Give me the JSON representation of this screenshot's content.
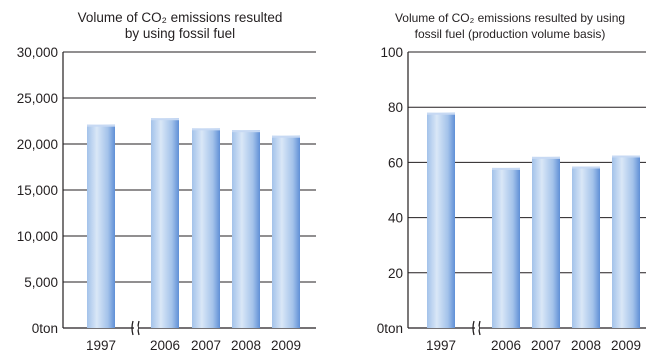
{
  "colors": {
    "bar_light": "#d9e7f7",
    "bar_mid": "#a3c2ea",
    "bar_dark": "#5f8fd6",
    "bar_top": "#c7d9f3",
    "axis": "#231f20",
    "gridline": "#231f20"
  },
  "chart_data": [
    {
      "type": "bar",
      "title_line1": "Volume of CO₂ emissions resulted",
      "title_line2": "by using fossil fuel",
      "categories": [
        "1997",
        "2006",
        "2007",
        "2008",
        "2009"
      ],
      "values": [
        22100,
        22800,
        21700,
        21500,
        20900
      ],
      "ylim": [
        0,
        30000
      ],
      "yticks": [
        0,
        5000,
        10000,
        15000,
        20000,
        25000,
        30000
      ],
      "ytick_labels": [
        "0ton",
        "5,000",
        "10,000",
        "15,000",
        "20,000",
        "25,000",
        "30,000"
      ],
      "axis_break_after": "1997",
      "grid": true
    },
    {
      "type": "bar",
      "title_line1": "Volume of CO₂ emissions resulted by using",
      "title_line2": "fossil fuel (production volume basis)",
      "categories": [
        "1997",
        "2006",
        "2007",
        "2008",
        "2009"
      ],
      "values": [
        78,
        58,
        62,
        58.5,
        62.5
      ],
      "ylim": [
        0,
        100
      ],
      "yticks": [
        0,
        20,
        40,
        60,
        80,
        100
      ],
      "ytick_labels": [
        "0ton",
        "20",
        "40",
        "60",
        "80",
        "100"
      ],
      "axis_break_after": "1997",
      "grid": true
    }
  ]
}
